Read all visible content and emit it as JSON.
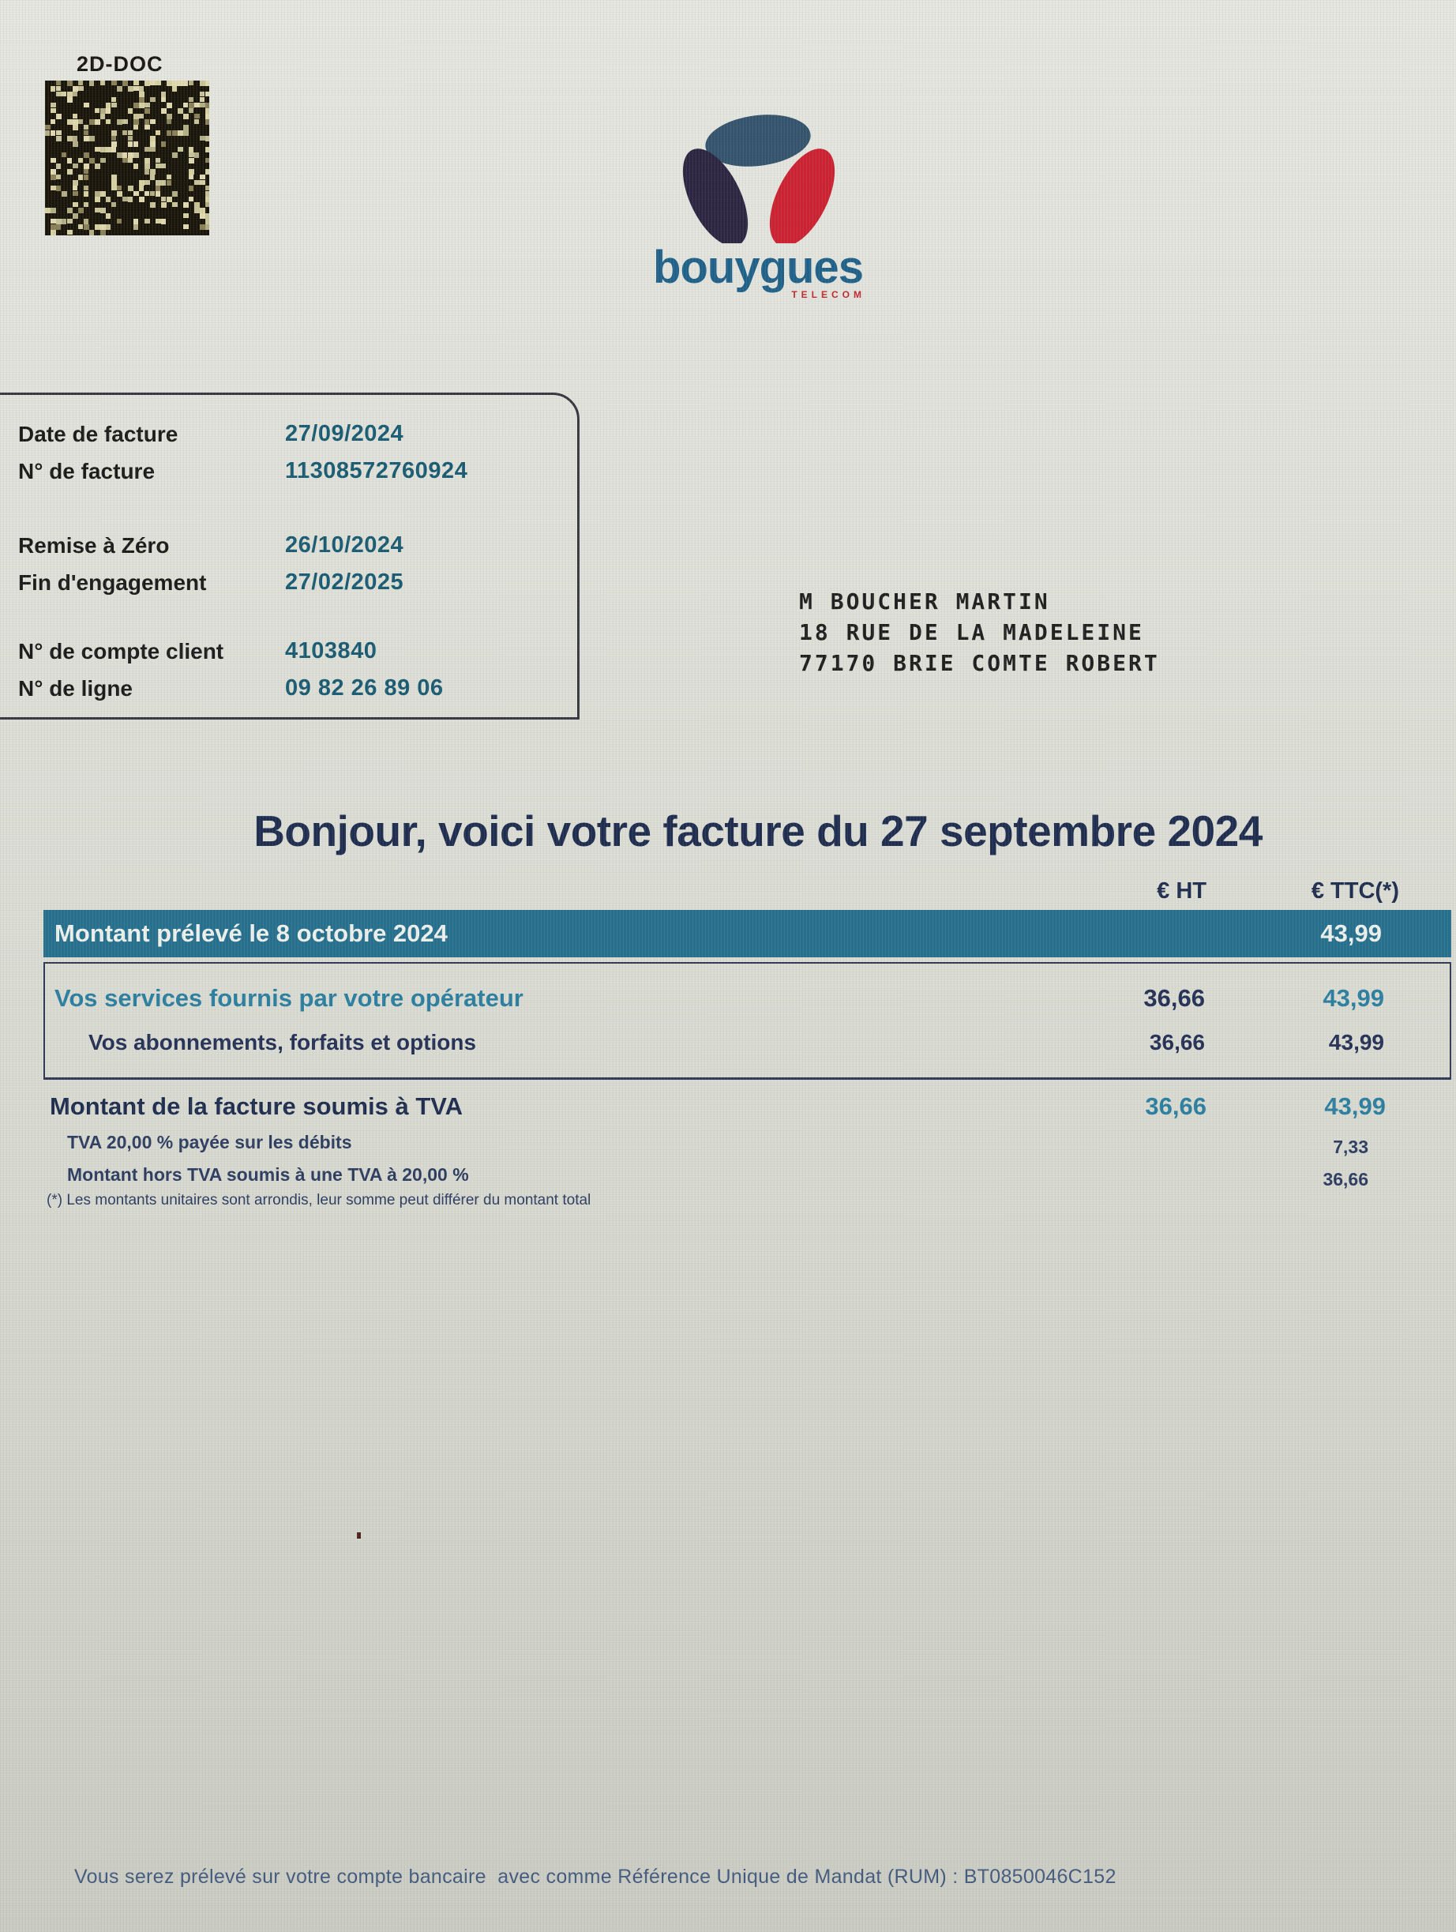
{
  "barcode": {
    "label": "2D-DOC"
  },
  "logo": {
    "wordmark": "bouygues",
    "subbrand": "TELECOM"
  },
  "info_box": {
    "rows": [
      {
        "label": "Date de facture",
        "value": "27/09/2024"
      },
      {
        "label": "N° de facture",
        "value": "11308572760924"
      },
      {
        "label": "Remise à Zéro",
        "value": "26/10/2024"
      },
      {
        "label": "Fin d'engagement",
        "value": "27/02/2025"
      },
      {
        "label": "N° de compte client",
        "value": "4103840"
      },
      {
        "label": "N° de ligne",
        "value": "09 82 26 89 06"
      }
    ]
  },
  "recipient": {
    "lines": [
      "M BOUCHER MARTIN",
      "18 RUE DE LA MADELEINE",
      "77170 BRIE COMTE ROBERT"
    ]
  },
  "greeting_title": "Bonjour, voici votre facture du 27 septembre 2024",
  "invoice_table": {
    "columns": {
      "ht": "€ HT",
      "ttc": "€ TTC(*)"
    },
    "banner": {
      "label": "Montant prélevé le 8 octobre 2024",
      "ttc": "43,99"
    },
    "rows": {
      "services": {
        "label": "Vos services fournis par votre opérateur",
        "ht": "36,66",
        "ttc": "43,99"
      },
      "subscriptions": {
        "label": "Vos abonnements, forfaits et options",
        "ht": "36,66",
        "ttc": "43,99"
      },
      "tva_total": {
        "label": "Montant de la facture soumis à TVA",
        "ht": "36,66",
        "ttc": "43,99"
      },
      "tva_paid": {
        "label": "TVA 20,00 % payée sur les débits",
        "ttc": "7,33"
      },
      "ht_base": {
        "label": "Montant hors TVA soumis à une TVA à 20,00 %",
        "ttc": "36,66"
      }
    },
    "footnote": "(*) Les montants unitaires sont arrondis, leur somme peut différer du montant total"
  },
  "footer": {
    "mandate_text": "Vous serez prélevé sur votre compte bancaire  avec comme Référence Unique de Mandat (RUM) : BT0850046C152"
  },
  "colors": {
    "banner_teal": "#256f8e",
    "heading_navy": "#1d2b4e",
    "teal_text": "#2a7ea0",
    "info_value_teal": "#175a72",
    "logo_red": "#cd2030",
    "logo_dark_navy": "#2a2440",
    "logo_steel_blue": "#33536d",
    "wordmark_blue": "#1e6089"
  }
}
